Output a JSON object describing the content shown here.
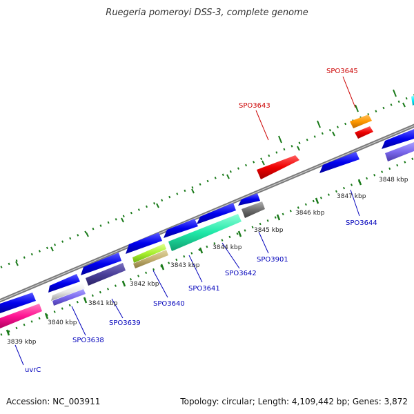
{
  "title": "Ruegeria pomeroyi DSS-3, complete genome",
  "footer": {
    "accession": "Accession: NC_003911",
    "summary": "Topology: circular; Length: 4,109,442 bp; Genes: 3,872"
  },
  "colors": {
    "backbone": "#8a8a8a",
    "tick": "#1a7a1a",
    "label_forward": "#cc0000",
    "label_reverse": "#0000bb"
  },
  "scale_ticks_kbp": [
    {
      "label": "3839 kbp",
      "kbp": 3839
    },
    {
      "label": "3840 kbp",
      "kbp": 3840
    },
    {
      "label": "3841 kbp",
      "kbp": 3841
    },
    {
      "label": "3842 kbp",
      "kbp": 3842
    },
    {
      "label": "3843 kbp",
      "kbp": 3843
    },
    {
      "label": "3844 kbp",
      "kbp": 3844
    },
    {
      "label": "3845 kbp",
      "kbp": 3845
    },
    {
      "label": "3846 kbp",
      "kbp": 3846
    },
    {
      "label": "3847 kbp",
      "kbp": 3847
    },
    {
      "label": "3848 kbp",
      "kbp": 3848
    }
  ],
  "gene_labels": [
    {
      "name": "SPO3645",
      "strand": "forward"
    },
    {
      "name": "SPO3643",
      "strand": "forward"
    },
    {
      "name": "SPO3644",
      "strand": "reverse"
    },
    {
      "name": "SPO3901",
      "strand": "reverse"
    },
    {
      "name": "SPO3642",
      "strand": "reverse"
    },
    {
      "name": "SPO3641",
      "strand": "reverse"
    },
    {
      "name": "SPO3640",
      "strand": "reverse"
    },
    {
      "name": "SPO3639",
      "strand": "reverse"
    },
    {
      "name": "SPO3638",
      "strand": "reverse"
    },
    {
      "name": "uvrC",
      "strand": "reverse"
    }
  ]
}
